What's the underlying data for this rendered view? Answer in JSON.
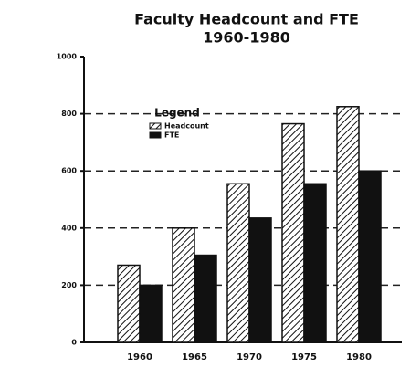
{
  "chart_data": {
    "type": "bar",
    "title": "Faculty Headcount and FTE",
    "subtitle": "1960-1980",
    "categories": [
      "1960",
      "1965",
      "1970",
      "1975",
      "1980"
    ],
    "series": [
      {
        "name": "Headcount",
        "color": "#111111",
        "hatch": true,
        "values": [
          270,
          400,
          555,
          765,
          825
        ]
      },
      {
        "name": "FTE",
        "color": "#111111",
        "hatch": false,
        "values": [
          200,
          305,
          435,
          555,
          600
        ]
      }
    ],
    "legend_title": "Legend",
    "legend": "top-left",
    "ylim": [
      0,
      1000
    ],
    "yticks": [
      0,
      200,
      400,
      600,
      800,
      1000
    ],
    "grid": true
  }
}
